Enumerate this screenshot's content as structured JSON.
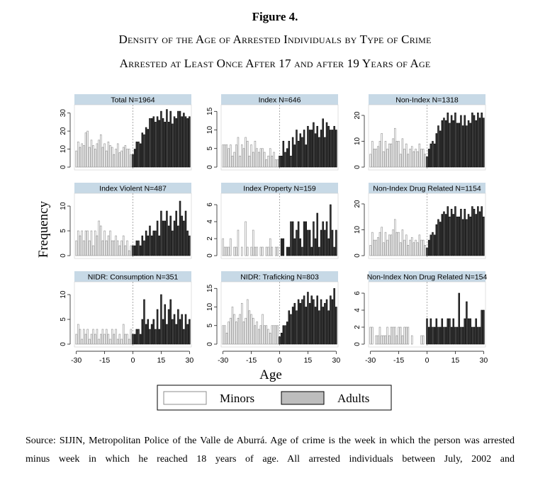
{
  "figure": {
    "title": "Figure 4.",
    "subtitle_line1": "Density of the Age of Arrested Individuals by Type of Crime",
    "subtitle_line2": "Arrested at Least Once After 17 and after 19 Years of Age"
  },
  "source_text": "Source: SIJIN, Metropolitan Police of the Valle de Aburrá. Age of crime is the week in which the person was arrested minus week in which he reached 18 years of age. All arrested individuals between July, 2002 and",
  "colors": {
    "minors_fill": "#ffffff",
    "minors_edge": "#8c8c8c",
    "adults_fill": "#3a3a3a",
    "adults_edge": "#000000",
    "panel_header": "#c7d9e6"
  },
  "chart_data": {
    "type": "bar",
    "layout": "3x3 small multiples (histograms)",
    "xlabel": "Age",
    "ylabel": "Frequency",
    "x_ticks": [
      -30,
      -15,
      0,
      15,
      30
    ],
    "x_tick_labels": [
      "-30",
      "-15",
      "0",
      "15",
      "30"
    ],
    "xlim": [
      -31,
      31
    ],
    "reference_line": 0,
    "legend": [
      "Minors",
      "Adults"
    ],
    "legend_position": "bottom",
    "x": [
      -30,
      -29,
      -28,
      -27,
      -26,
      -25,
      -24,
      -23,
      -22,
      -21,
      -20,
      -19,
      -18,
      -17,
      -16,
      -15,
      -14,
      -13,
      -12,
      -11,
      -10,
      -9,
      -8,
      -7,
      -6,
      -5,
      -4,
      -3,
      -2,
      -1,
      0,
      1,
      2,
      3,
      4,
      5,
      6,
      7,
      8,
      9,
      10,
      11,
      12,
      13,
      14,
      15,
      16,
      17,
      18,
      19,
      20,
      21,
      22,
      23,
      24,
      25,
      26,
      27,
      28,
      29,
      30
    ],
    "panels": [
      {
        "title": "Total N=1964",
        "ylim": [
          0,
          33
        ],
        "yticks": [
          0,
          10,
          20,
          30
        ],
        "minors": [
          9,
          14,
          11,
          13,
          12,
          19,
          20,
          11,
          15,
          12,
          10,
          13,
          15,
          18,
          11,
          13,
          9,
          14,
          12,
          11,
          7,
          10,
          13,
          8,
          9,
          11,
          12,
          10,
          10,
          7
        ],
        "adults": [
          7,
          10,
          14,
          14,
          13,
          19,
          18,
          22,
          21,
          27,
          27,
          28,
          25,
          28,
          26,
          31,
          27,
          25,
          32,
          25,
          31,
          24,
          28,
          27,
          31,
          31,
          28,
          30,
          28,
          27,
          28
        ]
      },
      {
        "title": "Index N=646",
        "ylim": [
          0,
          16
        ],
        "yticks": [
          0,
          5,
          10,
          15
        ],
        "minors": [
          6,
          6,
          6,
          5,
          6,
          3,
          4,
          6,
          8,
          3,
          6,
          5,
          8,
          7,
          3,
          6,
          4,
          7,
          5,
          4,
          5,
          5,
          4,
          2,
          3,
          5,
          3,
          4,
          2,
          2
        ],
        "adults": [
          3,
          3,
          7,
          4,
          5,
          7,
          3,
          8,
          6,
          10,
          7,
          9,
          8,
          10,
          6,
          11,
          10,
          10,
          12,
          9,
          11,
          8,
          10,
          13,
          8,
          12,
          11,
          10,
          10,
          11,
          10
        ]
      },
      {
        "title": "Non-Index N=1318",
        "ylim": [
          0,
          23
        ],
        "yticks": [
          0,
          10,
          20
        ],
        "minors": [
          5,
          10,
          7,
          7,
          8,
          10,
          13,
          6,
          10,
          7,
          9,
          9,
          11,
          15,
          10,
          10,
          5,
          11,
          7,
          9,
          5,
          7,
          8,
          6,
          7,
          6,
          9,
          7,
          7,
          5
        ],
        "adults": [
          4,
          7,
          9,
          10,
          9,
          13,
          16,
          14,
          18,
          19,
          18,
          21,
          17,
          20,
          18,
          21,
          17,
          17,
          20,
          16,
          20,
          16,
          18,
          17,
          21,
          20,
          18,
          21,
          19,
          21,
          19
        ]
      },
      {
        "title": "Index Violent N=487",
        "ylim": [
          0,
          12
        ],
        "yticks": [
          0,
          5,
          10
        ],
        "minors": [
          3,
          5,
          4,
          5,
          3,
          5,
          5,
          3,
          5,
          2,
          5,
          4,
          7,
          6,
          3,
          5,
          3,
          4,
          5,
          3,
          3,
          4,
          3,
          2,
          3,
          4,
          2,
          3,
          1,
          2
        ],
        "adults": [
          2,
          2,
          3,
          3,
          2,
          4,
          3,
          5,
          4,
          6,
          4,
          5,
          5,
          7,
          4,
          9,
          7,
          7,
          9,
          6,
          8,
          5,
          7,
          9,
          6,
          11,
          8,
          7,
          9,
          5,
          4
        ]
      },
      {
        "title": "Index Property N=159",
        "ylim": [
          0,
          7
        ],
        "yticks": [
          0,
          2,
          4,
          6
        ],
        "minors": [
          2,
          1,
          1,
          1,
          2,
          0,
          1,
          1,
          3,
          0,
          1,
          0,
          4,
          1,
          0,
          1,
          3,
          1,
          1,
          0,
          1,
          1,
          0,
          1,
          1,
          2,
          1,
          0,
          1,
          1
        ],
        "adults": [
          0,
          2,
          2,
          0,
          1,
          1,
          4,
          4,
          2,
          3,
          4,
          2,
          1,
          4,
          4,
          3,
          3,
          1,
          4,
          2,
          5,
          1,
          3,
          4,
          3,
          4,
          2,
          6,
          3,
          1,
          3
        ]
      },
      {
        "title": "Non-Index Drug Related N=1154",
        "ylim": [
          0,
          23
        ],
        "yticks": [
          0,
          10,
          20
        ],
        "minors": [
          4,
          9,
          6,
          6,
          7,
          9,
          11,
          5,
          9,
          6,
          8,
          8,
          10,
          14,
          9,
          9,
          5,
          10,
          6,
          8,
          4,
          6,
          7,
          5,
          6,
          5,
          8,
          6,
          6,
          4
        ],
        "adults": [
          3,
          6,
          8,
          9,
          8,
          12,
          14,
          13,
          16,
          17,
          16,
          19,
          15,
          18,
          16,
          19,
          15,
          15,
          18,
          14,
          18,
          14,
          16,
          15,
          19,
          18,
          16,
          19,
          17,
          19,
          15
        ]
      },
      {
        "title": "NIDR: Consumption N=351",
        "ylim": [
          0,
          12
        ],
        "yticks": [
          0,
          5,
          10
        ],
        "minors": [
          2,
          4,
          3,
          1,
          3,
          2,
          3,
          1,
          2,
          3,
          2,
          3,
          1,
          2,
          3,
          2,
          3,
          2,
          1,
          3,
          2,
          3,
          1,
          2,
          1,
          4,
          2,
          2,
          1,
          3
        ],
        "adults": [
          2,
          2,
          3,
          3,
          2,
          5,
          9,
          4,
          5,
          3,
          4,
          5,
          3,
          7,
          3,
          10,
          5,
          8,
          4,
          7,
          9,
          5,
          6,
          4,
          7,
          5,
          6,
          3,
          6,
          4,
          5
        ]
      },
      {
        "title": "NIDR: Traficking N=803",
        "ylim": [
          0,
          16
        ],
        "yticks": [
          0,
          5,
          10,
          15
        ],
        "minors": [
          5,
          5,
          3,
          6,
          7,
          10,
          8,
          6,
          7,
          8,
          11,
          6,
          7,
          12,
          9,
          8,
          7,
          5,
          6,
          4,
          5,
          8,
          5,
          5,
          4,
          3,
          5,
          5,
          5,
          5
        ],
        "adults": [
          2,
          3,
          5,
          5,
          6,
          9,
          8,
          10,
          11,
          9,
          12,
          11,
          12,
          13,
          10,
          14,
          11,
          13,
          12,
          10,
          13,
          9,
          12,
          10,
          11,
          12,
          9,
          13,
          12,
          15,
          10
        ]
      },
      {
        "title": "Non-Index Non Drug Related N=154",
        "ylim": [
          0,
          7
        ],
        "yticks": [
          0,
          2,
          4,
          6
        ],
        "minors": [
          2,
          2,
          0,
          1,
          1,
          2,
          1,
          1,
          1,
          2,
          1,
          2,
          2,
          2,
          1,
          2,
          2,
          1,
          2,
          2,
          2,
          0,
          1,
          0,
          0,
          0,
          0,
          1,
          1,
          0
        ],
        "adults": [
          3,
          2,
          3,
          2,
          2,
          3,
          2,
          2,
          3,
          2,
          2,
          3,
          3,
          2,
          3,
          2,
          2,
          6,
          2,
          2,
          3,
          5,
          3,
          3,
          2,
          2,
          3,
          2,
          2,
          4,
          4
        ]
      }
    ]
  }
}
